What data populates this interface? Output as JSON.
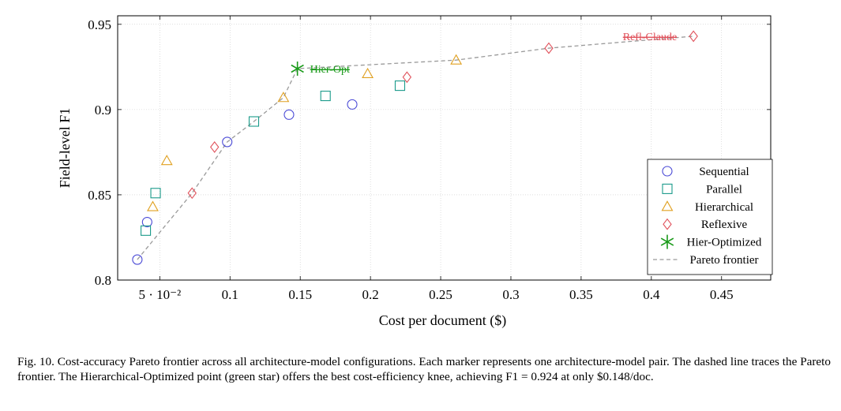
{
  "caption": "Fig. 10.  Cost-accuracy Pareto frontier across all architecture-model configurations. Each marker represents one architecture-model pair. The dashed line traces the Pareto frontier. The Hierarchical-Optimized point (green star) offers the best cost-efficiency knee, achieving F1 = 0.924 at only $0.148/doc.",
  "chart_data": {
    "type": "scatter",
    "title": "",
    "xlabel": "Cost per document ($)",
    "ylabel": "Field-level F1",
    "xlim": [
      0.02,
      0.485
    ],
    "ylim": [
      0.8,
      0.955
    ],
    "x_ticks": [
      {
        "value": 0.05,
        "label": "5 · 10⁻²"
      },
      {
        "value": 0.1,
        "label": "0.1"
      },
      {
        "value": 0.15,
        "label": "0.15"
      },
      {
        "value": 0.2,
        "label": "0.2"
      },
      {
        "value": 0.25,
        "label": "0.25"
      },
      {
        "value": 0.3,
        "label": "0.3"
      },
      {
        "value": 0.35,
        "label": "0.35"
      },
      {
        "value": 0.4,
        "label": "0.4"
      },
      {
        "value": 0.45,
        "label": "0.45"
      }
    ],
    "y_ticks": [
      {
        "value": 0.8,
        "label": "0.8"
      },
      {
        "value": 0.85,
        "label": "0.85"
      },
      {
        "value": 0.9,
        "label": "0.9"
      },
      {
        "value": 0.95,
        "label": "0.95"
      }
    ],
    "grid": true,
    "legend_position": "bottom-right",
    "series": [
      {
        "name": "Sequential",
        "marker": "circle",
        "color": "#4a4ad6",
        "points": [
          [
            0.034,
            0.812
          ],
          [
            0.041,
            0.834
          ],
          [
            0.098,
            0.881
          ],
          [
            0.142,
            0.897
          ],
          [
            0.187,
            0.903
          ]
        ]
      },
      {
        "name": "Parallel",
        "marker": "square",
        "color": "#1a9a8a",
        "points": [
          [
            0.04,
            0.829
          ],
          [
            0.047,
            0.851
          ],
          [
            0.117,
            0.893
          ],
          [
            0.168,
            0.908
          ],
          [
            0.221,
            0.914
          ]
        ]
      },
      {
        "name": "Hierarchical",
        "marker": "triangle",
        "color": "#e0a020",
        "points": [
          [
            0.045,
            0.843
          ],
          [
            0.055,
            0.87
          ],
          [
            0.138,
            0.907
          ],
          [
            0.198,
            0.921
          ],
          [
            0.261,
            0.929
          ]
        ]
      },
      {
        "name": "Reflexive",
        "marker": "diamond",
        "color": "#e0505a",
        "points": [
          [
            0.073,
            0.851
          ],
          [
            0.089,
            0.878
          ],
          [
            0.226,
            0.919
          ],
          [
            0.327,
            0.936
          ],
          [
            0.43,
            0.943
          ]
        ]
      },
      {
        "name": "Hier-Optimized",
        "marker": "star",
        "color": "#1a9a1a",
        "points": [
          [
            0.148,
            0.924
          ]
        ]
      },
      {
        "name": "Pareto frontier",
        "marker": "dashed-line",
        "color": "#9a9a9a",
        "points": [
          [
            0.034,
            0.812
          ],
          [
            0.073,
            0.851
          ],
          [
            0.098,
            0.881
          ],
          [
            0.117,
            0.893
          ],
          [
            0.138,
            0.907
          ],
          [
            0.148,
            0.924
          ],
          [
            0.261,
            0.929
          ],
          [
            0.327,
            0.936
          ],
          [
            0.43,
            0.943
          ]
        ]
      }
    ],
    "annotations": [
      {
        "text": "Hier-Opt",
        "x": 0.148,
        "y": 0.924,
        "color": "#1a9a1a",
        "anchor": "right"
      },
      {
        "text": "Refl-Claude",
        "x": 0.43,
        "y": 0.943,
        "color": "#e0505a",
        "anchor": "left"
      }
    ]
  }
}
